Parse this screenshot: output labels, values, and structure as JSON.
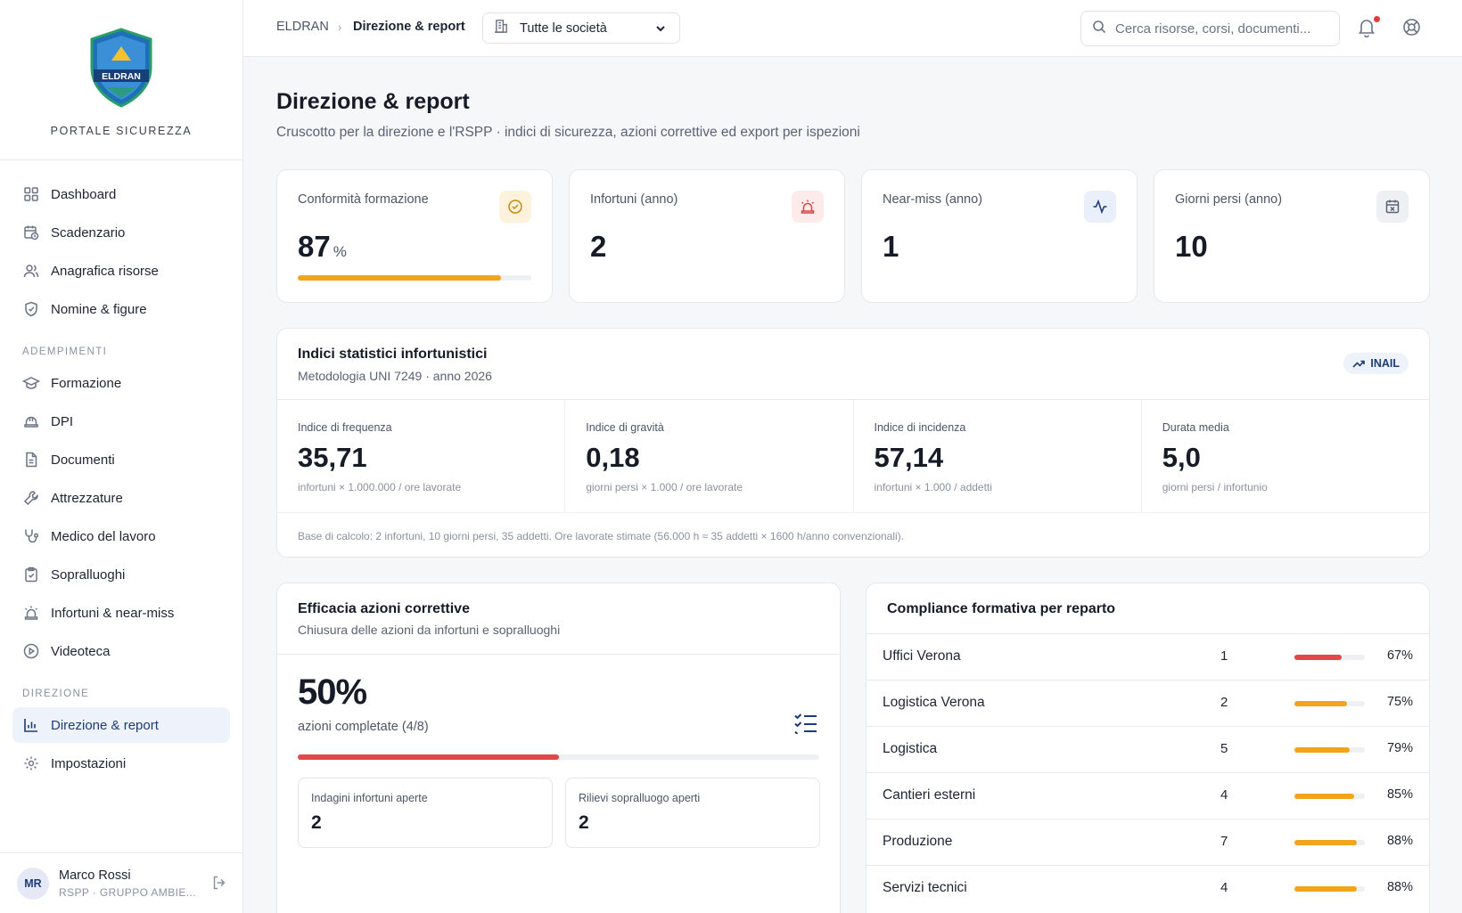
{
  "brand": {
    "logo_text": "ELDRAN",
    "caption": "PORTALE SICUREZZA"
  },
  "nav": {
    "main": [
      {
        "label": "Dashboard",
        "icon": "grid-icon"
      },
      {
        "label": "Scadenzario",
        "icon": "calendar-clock-icon"
      },
      {
        "label": "Anagrafica risorse",
        "icon": "users-icon"
      },
      {
        "label": "Nomine & figure",
        "icon": "shield-icon"
      }
    ],
    "section_adempimenti": "ADEMPIMENTI",
    "adempimenti": [
      {
        "label": "Formazione",
        "icon": "graduation-cap-icon"
      },
      {
        "label": "DPI",
        "icon": "hard-hat-icon"
      },
      {
        "label": "Documenti",
        "icon": "file-icon"
      },
      {
        "label": "Attrezzature",
        "icon": "wrench-icon"
      },
      {
        "label": "Medico del lavoro",
        "icon": "stethoscope-icon"
      },
      {
        "label": "Sopralluoghi",
        "icon": "clipboard-check-icon"
      },
      {
        "label": "Infortuni & near-miss",
        "icon": "siren-icon"
      },
      {
        "label": "Videoteca",
        "icon": "play-circle-icon"
      }
    ],
    "section_direzione": "DIREZIONE",
    "direzione": [
      {
        "label": "Direzione & report",
        "icon": "bar-chart-icon",
        "active": true
      },
      {
        "label": "Impostazioni",
        "icon": "gear-icon"
      }
    ]
  },
  "user": {
    "initials": "MR",
    "name": "Marco Rossi",
    "role": "RSPP · GRUPPO AMBIE..."
  },
  "topbar": {
    "breadcrumb_root": "ELDRAN",
    "breadcrumb_current": "Direzione & report",
    "company_select": "Tutte le società",
    "search_placeholder": "Cerca risorse, corsi, documenti..."
  },
  "page": {
    "title": "Direzione & report",
    "subtitle": "Cruscotto per la direzione e l'RSPP · indici di sicurezza, azioni correttive ed export per ispezioni"
  },
  "kpis": [
    {
      "label": "Conformità formazione",
      "value": "87",
      "unit": "%",
      "progress": 0.87,
      "icon": "check-circle-icon",
      "icon_bg": "#fdf3dc",
      "icon_color": "#c98a0c"
    },
    {
      "label": "Infortuni (anno)",
      "value": "2",
      "icon": "siren-icon",
      "icon_bg": "#fdeaea",
      "icon_color": "#d64545"
    },
    {
      "label": "Near-miss (anno)",
      "value": "1",
      "icon": "activity-icon",
      "icon_bg": "#eaf0fb",
      "icon_color": "#1d3a7a"
    },
    {
      "label": "Giorni persi (anno)",
      "value": "10",
      "icon": "calendar-x-icon",
      "icon_bg": "#eef0f3",
      "icon_color": "#5a6273"
    }
  ],
  "indici": {
    "title": "Indici statistici infortunistici",
    "subtitle": "Metodologia UNI 7249 · anno 2026",
    "badge": "INAIL",
    "items": [
      {
        "label": "Indice di frequenza",
        "value": "35,71",
        "note": "infortuni × 1.000.000 / ore lavorate"
      },
      {
        "label": "Indice di gravità",
        "value": "0,18",
        "note": "giorni persi × 1.000 / ore lavorate"
      },
      {
        "label": "Indice di incidenza",
        "value": "57,14",
        "note": "infortuni × 1.000 / addetti"
      },
      {
        "label": "Durata media",
        "value": "5,0",
        "note": "giorni persi / infortunio"
      }
    ],
    "footnote": "Base di calcolo: 2 infortuni, 10 giorni persi, 35 addetti. Ore lavorate stimate (56.000 h ≈ 35 addetti × 1600 h/anno convenzionali)."
  },
  "efficacia": {
    "title": "Efficacia azioni correttive",
    "subtitle": "Chiusura delle azioni da infortuni e sopralluoghi",
    "percent": "50%",
    "progress": 0.5,
    "detail": "azioni completate (4/8)",
    "boxes": [
      {
        "label": "Indagini infortuni aperte",
        "value": "2"
      },
      {
        "label": "Rilievi sopralluogo aperti",
        "value": "2"
      }
    ]
  },
  "compliance": {
    "title": "Compliance formativa per reparto",
    "rows": [
      {
        "name": "Uffici Verona",
        "count": "1",
        "pct": "67%",
        "fraction": 0.67,
        "color": "#e54646"
      },
      {
        "name": "Logistica Verona",
        "count": "2",
        "pct": "75%",
        "fraction": 0.75,
        "color": "#f2a51c"
      },
      {
        "name": "Logistica",
        "count": "5",
        "pct": "79%",
        "fraction": 0.79,
        "color": "#f2a51c"
      },
      {
        "name": "Cantieri esterni",
        "count": "4",
        "pct": "85%",
        "fraction": 0.85,
        "color": "#f2a51c"
      },
      {
        "name": "Produzione",
        "count": "7",
        "pct": "88%",
        "fraction": 0.88,
        "color": "#f2a51c"
      },
      {
        "name": "Servizi tecnici",
        "count": "4",
        "pct": "88%",
        "fraction": 0.88,
        "color": "#f2a51c"
      }
    ]
  }
}
